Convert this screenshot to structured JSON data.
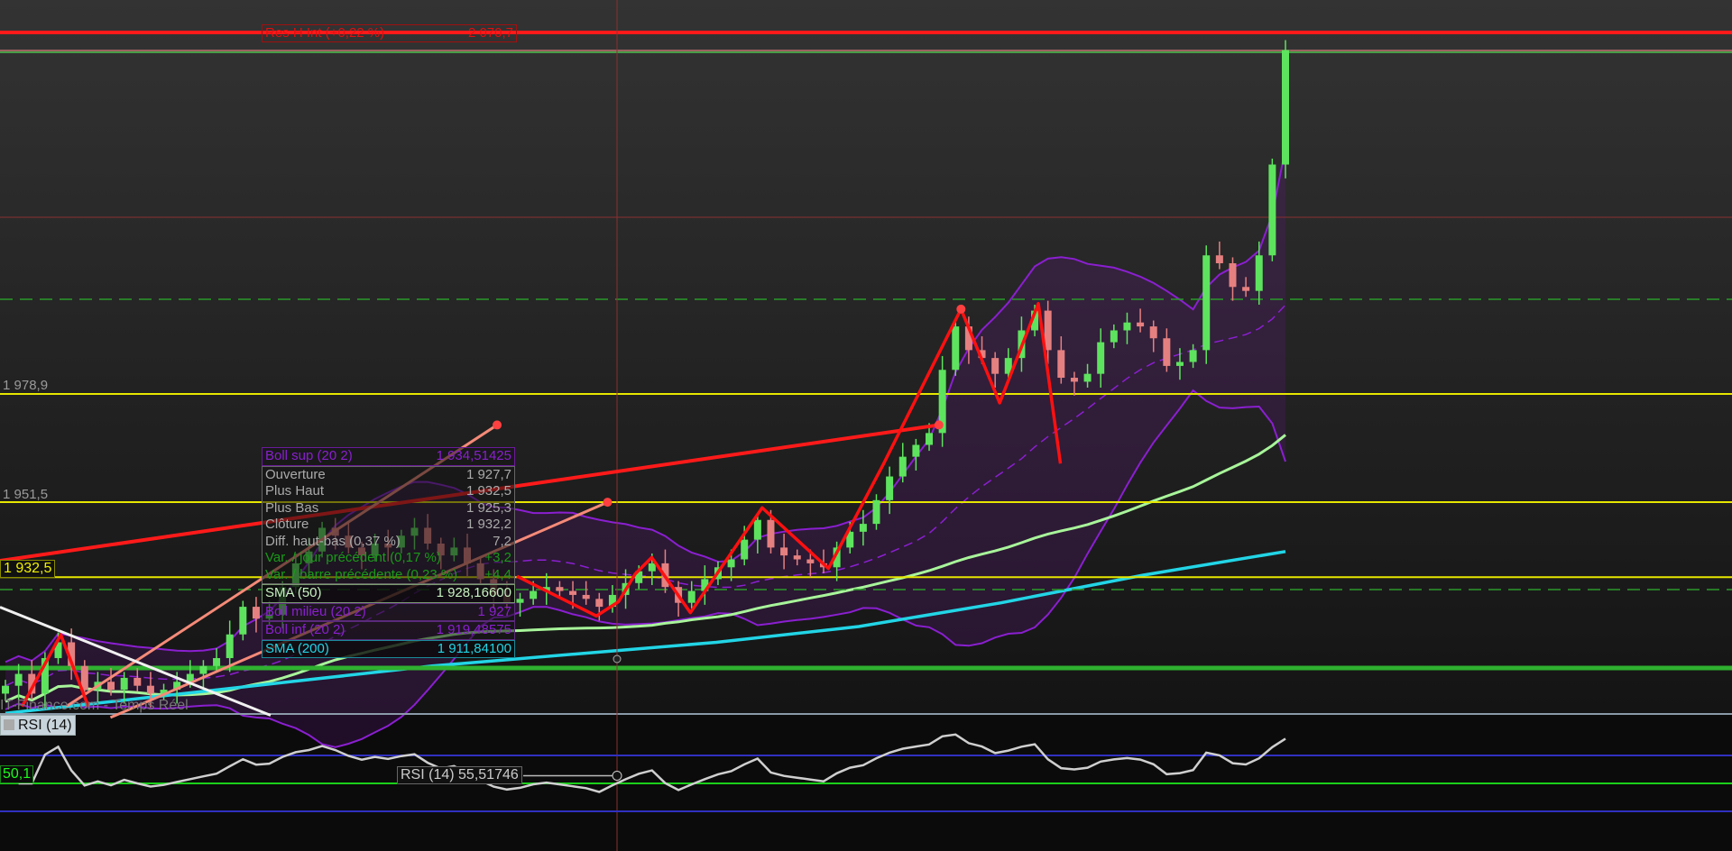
{
  "colors": {
    "bull": "#5ee35e",
    "bear": "#e58080",
    "boll": "#8a1fd0",
    "sma50": "#a8f59a",
    "sma200": "#22d5e6",
    "resistance": "#ff1a1a",
    "level": "#e6e600",
    "rsi_line": "#cfcfcf"
  },
  "resistance_label": {
    "name": "Res H Int (+0,22 %)",
    "value": "2 070,7"
  },
  "levels": [
    {
      "label": "1 978,9",
      "price": 1978.9
    },
    {
      "label": "1 951,5",
      "price": 1951.5
    },
    {
      "label": "1 932,5",
      "price": 1932.5
    }
  ],
  "watermark": "IT-Finance.com - Temps Réel",
  "tooltip": {
    "boll_sup": {
      "label": "Boll sup (20 2)",
      "value": "1 934,51425"
    },
    "rows": [
      {
        "label": "Ouverture",
        "value": "1 927,7"
      },
      {
        "label": "Plus Haut",
        "value": "1 932,5"
      },
      {
        "label": "Plus Bas",
        "value": "1 925,3"
      },
      {
        "label": "Clôture",
        "value": "1 932,2"
      },
      {
        "label": "Diff. haut-bas (0,37 %)",
        "value": "7,2"
      }
    ],
    "green_rows": [
      {
        "label": "Var. / jour précédent (0,17 %)",
        "value": "+3,2"
      },
      {
        "label": "Var. / barre précédente (0,23 %)",
        "value": "+4,4"
      }
    ],
    "sma50": {
      "label": "SMA (50)",
      "value": "1 928,16600"
    },
    "boll_mid": {
      "label": "Boll milieu (20 2)",
      "value": "1 927"
    },
    "boll_inf": {
      "label": "Boll inf (20 2)",
      "value": "1 919,48575"
    },
    "sma200": {
      "label": "SMA (200)",
      "value": "1 911,84100"
    }
  },
  "rsi": {
    "title": "RSI (14)",
    "level_label": "50,1",
    "readout_label": "RSI (14)",
    "readout_value": "55,51746",
    "upper": 70,
    "mid": 50,
    "lower": 30
  },
  "chart_data": {
    "type": "candlestick",
    "price_levels_shown": [
      2070.7,
      1978.9,
      1951.5,
      1932.5
    ],
    "closes": [
      1905,
      1908,
      1903,
      1912,
      1916,
      1910,
      1904,
      1906,
      1904,
      1907,
      1905,
      1903,
      1904,
      1906,
      1908,
      1910,
      1912,
      1918,
      1925,
      1922,
      1923,
      1930,
      1936,
      1939,
      1945,
      1943,
      1940,
      1938,
      1941,
      1940,
      1943,
      1945,
      1941,
      1938,
      1940,
      1936,
      1932,
      1928,
      1926,
      1927,
      1929,
      1930,
      1929,
      1928,
      1927,
      1925,
      1928,
      1931,
      1934,
      1936,
      1930,
      1926,
      1929,
      1932,
      1935,
      1937,
      1942,
      1947,
      1940,
      1938,
      1937,
      1936,
      1935,
      1940,
      1944,
      1946,
      1952,
      1958,
      1963,
      1966,
      1969,
      1985,
      1996,
      1990,
      1988,
      1984,
      1988,
      1995,
      2000,
      1990,
      1983,
      1982,
      1984,
      1992,
      1995,
      1997,
      1996,
      1993,
      1986,
      1987,
      1990,
      2014,
      2012,
      2006,
      2005,
      2014,
      2037,
      2066
    ],
    "sma200": [
      1898,
      1902,
      1906,
      1910,
      1913,
      1916,
      1920,
      1926,
      1933,
      1939
    ]
  }
}
